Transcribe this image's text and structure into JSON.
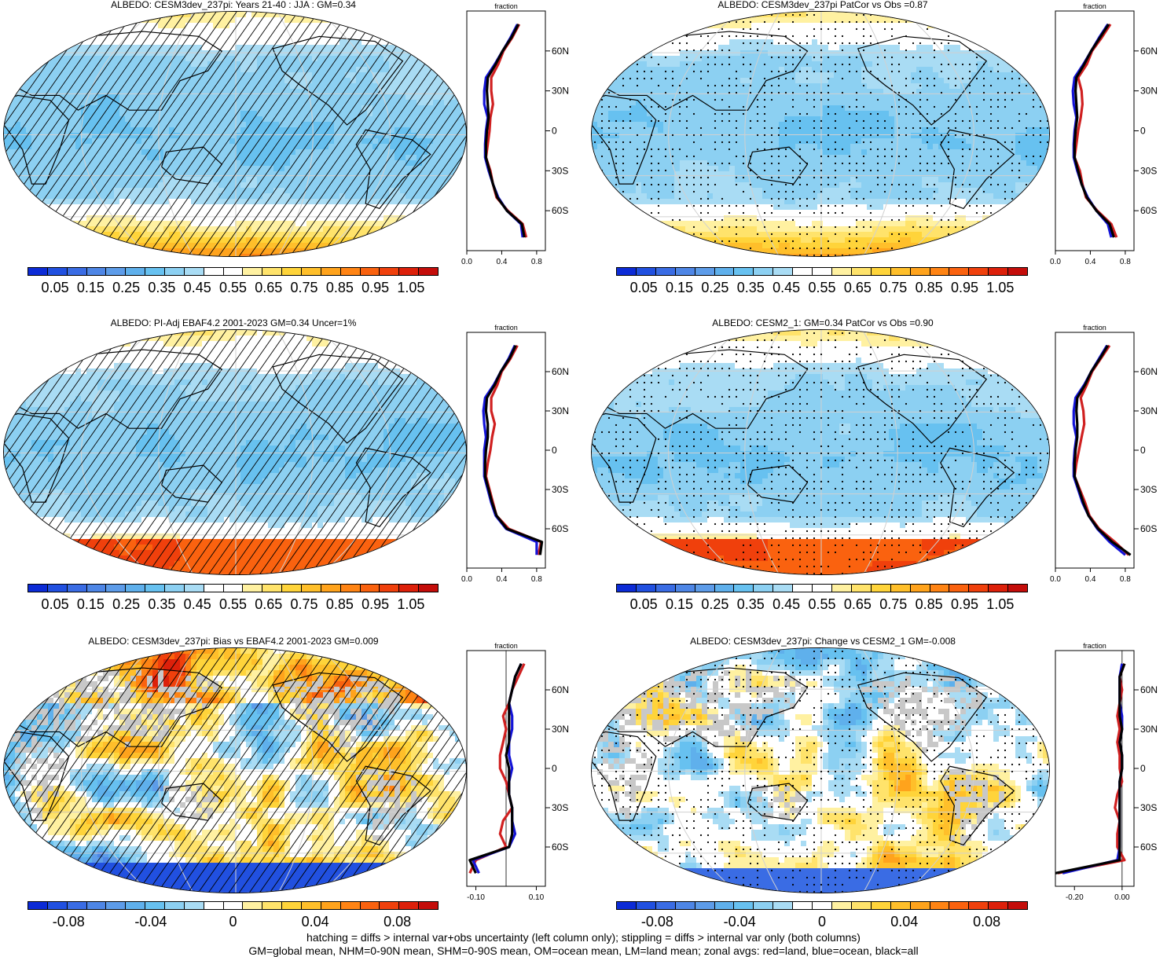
{
  "panels": [
    {
      "title": "ALBEDO: CESM3dev_237pi: Years 21-40 : JJA : GM=0.34",
      "kind": "abs",
      "pattern": "hatch",
      "field": "abs1",
      "colorbar_labels": [
        "0.05",
        "0.15",
        "0.25",
        "0.35",
        "0.45",
        "0.55",
        "0.65",
        "0.75",
        "0.85",
        "0.95",
        "1.05"
      ],
      "zonal_top_label": "fraction",
      "zonal_y_ticks": [
        "60N",
        "30N",
        "0",
        "30S",
        "60S"
      ],
      "zonal_x_ticks": [
        "0.0",
        "0.4",
        "0.8"
      ]
    },
    {
      "title": "ALBEDO: CESM3dev_237pi PatCor vs Obs =0.87",
      "kind": "abs",
      "pattern": "stipple",
      "field": "abs1",
      "colorbar_labels": [
        "0.05",
        "0.15",
        "0.25",
        "0.35",
        "0.45",
        "0.55",
        "0.65",
        "0.75",
        "0.85",
        "0.95",
        "1.05"
      ],
      "zonal_top_label": "fraction",
      "zonal_y_ticks": [
        "60N",
        "30N",
        "0",
        "30S",
        "60S"
      ],
      "zonal_x_ticks": [
        "0.0",
        "0.4",
        "0.8"
      ]
    },
    {
      "title": "ALBEDO: PI-Adj EBAF4.2 2001-2023 GM=0.34 Uncer=1%",
      "kind": "abs",
      "pattern": "hatch",
      "field": "abs2",
      "colorbar_labels": [
        "0.05",
        "0.15",
        "0.25",
        "0.35",
        "0.45",
        "0.55",
        "0.65",
        "0.75",
        "0.85",
        "0.95",
        "1.05"
      ],
      "zonal_top_label": "fraction",
      "zonal_y_ticks": [
        "60N",
        "30N",
        "0",
        "30S",
        "60S"
      ],
      "zonal_x_ticks": [
        "0.0",
        "0.4",
        "0.8"
      ]
    },
    {
      "title": "ALBEDO: CESM2_1: GM=0.34 PatCor vs Obs =0.90",
      "kind": "abs",
      "pattern": "stipple",
      "field": "abs2",
      "colorbar_labels": [
        "0.05",
        "0.15",
        "0.25",
        "0.35",
        "0.45",
        "0.55",
        "0.65",
        "0.75",
        "0.85",
        "0.95",
        "1.05"
      ],
      "zonal_top_label": "fraction",
      "zonal_y_ticks": [
        "60N",
        "30N",
        "0",
        "30S",
        "60S"
      ],
      "zonal_x_ticks": [
        "0.0",
        "0.4",
        "0.8"
      ]
    },
    {
      "title": "ALBEDO: CESM3dev_237pi: Bias vs EBAF4.2 2001-2023 GM=0.009",
      "kind": "diff",
      "pattern": "hatch",
      "field": "bias",
      "colorbar_labels": [
        "-0.08",
        "-0.04",
        "0",
        "0.04",
        "0.08"
      ],
      "zonal_top_label": "fraction",
      "zonal_y_ticks": [
        "60N",
        "30N",
        "0",
        "30S",
        "60S"
      ],
      "zonal_x_ticks": [
        "-0.10",
        "0.10"
      ]
    },
    {
      "title": "ALBEDO: CESM3dev_237pi: Change vs CESM2_1 GM=-0.008",
      "kind": "diff",
      "pattern": "stipple",
      "field": "change",
      "colorbar_labels": [
        "-0.08",
        "-0.04",
        "0",
        "0.04",
        "0.08"
      ],
      "zonal_top_label": "fraction",
      "zonal_y_ticks": [
        "60N",
        "30N",
        "0",
        "30S",
        "60S"
      ],
      "zonal_x_ticks": [
        "-0.20",
        "0.00"
      ]
    }
  ],
  "colors": {
    "abs_scale": [
      "#0c2bd6",
      "#2150e0",
      "#3a6ce4",
      "#4e86e6",
      "#5d9ce9",
      "#5fb0ec",
      "#67c1f0",
      "#8cd0f2",
      "#a9dcf4",
      "#ffffff",
      "#ffffff",
      "#fff1a1",
      "#ffe36b",
      "#ffd43a",
      "#ffbf2a",
      "#ffa31c",
      "#ff8414",
      "#fa620f",
      "#f0400c",
      "#dd200a",
      "#c40d0a"
    ],
    "diff_scale": [
      "#0c2bd6",
      "#2150e0",
      "#3a6ce4",
      "#4e86e6",
      "#5d9ce9",
      "#5fb0ec",
      "#67c1f0",
      "#8cd0f2",
      "#a9dcf4",
      "#ffffff",
      "#ffffff",
      "#fff1a1",
      "#ffe36b",
      "#ffd43a",
      "#ffbf2a",
      "#ffa31c",
      "#ff8414",
      "#fa620f",
      "#f0400c",
      "#dd200a",
      "#c40d0a"
    ],
    "land": "#d02020",
    "ocean": "#1414d8",
    "all": "#000000",
    "missing_land": "#c8c8c8"
  },
  "chart_data": [
    {
      "type": "heatmap",
      "title": "ALBEDO: CESM3dev_237pi: Years 21-40 : JJA : GM=0.34",
      "colorbar_levels": [
        0.05,
        0.15,
        0.25,
        0.35,
        0.45,
        0.55,
        0.65,
        0.75,
        0.85,
        0.95,
        1.05
      ],
      "zonal_means": {
        "xlabel": "fraction",
        "xlim": [
          0,
          0.9
        ],
        "ylim": [
          -90,
          90
        ],
        "lat": [
          80,
          70,
          60,
          50,
          40,
          30,
          20,
          10,
          0,
          -10,
          -20,
          -30,
          -40,
          -50,
          -60,
          -70,
          -80
        ],
        "series": [
          {
            "name": "land",
            "values": [
              0.6,
              0.52,
              0.42,
              0.36,
              0.28,
              0.28,
              0.3,
              0.27,
              0.26,
              0.24,
              0.22,
              0.27,
              0.3,
              0.34,
              0.47,
              0.64,
              0.68
            ]
          },
          {
            "name": "ocean",
            "values": [
              0.58,
              0.5,
              0.41,
              0.32,
              0.22,
              0.2,
              0.2,
              0.24,
              0.22,
              0.21,
              0.21,
              0.25,
              0.3,
              0.36,
              0.46,
              0.62,
              0.64
            ]
          },
          {
            "name": "all",
            "values": [
              0.59,
              0.51,
              0.41,
              0.33,
              0.24,
              0.23,
              0.24,
              0.25,
              0.23,
              0.22,
              0.22,
              0.26,
              0.3,
              0.35,
              0.46,
              0.63,
              0.66
            ]
          }
        ]
      }
    },
    {
      "type": "heatmap",
      "title": "ALBEDO: CESM3dev_237pi PatCor vs Obs =0.87",
      "colorbar_levels": [
        0.05,
        0.15,
        0.25,
        0.35,
        0.45,
        0.55,
        0.65,
        0.75,
        0.85,
        0.95,
        1.05
      ],
      "zonal_means": {
        "xlabel": "fraction",
        "xlim": [
          0,
          0.9
        ],
        "ylim": [
          -90,
          90
        ],
        "lat": [
          80,
          70,
          60,
          50,
          40,
          30,
          20,
          10,
          0,
          -10,
          -20,
          -30,
          -40,
          -50,
          -60,
          -70,
          -80
        ],
        "series": [
          {
            "name": "land",
            "values": [
              0.63,
              0.53,
              0.42,
              0.36,
              0.26,
              0.3,
              0.31,
              0.29,
              0.26,
              0.24,
              0.22,
              0.28,
              0.31,
              0.35,
              0.48,
              0.64,
              0.7
            ]
          },
          {
            "name": "ocean",
            "values": [
              0.6,
              0.5,
              0.41,
              0.32,
              0.22,
              0.2,
              0.21,
              0.24,
              0.22,
              0.21,
              0.21,
              0.25,
              0.3,
              0.37,
              0.47,
              0.6,
              0.64
            ]
          },
          {
            "name": "all",
            "values": [
              0.61,
              0.51,
              0.41,
              0.33,
              0.24,
              0.23,
              0.24,
              0.25,
              0.23,
              0.22,
              0.22,
              0.26,
              0.3,
              0.36,
              0.47,
              0.62,
              0.67
            ]
          }
        ]
      }
    },
    {
      "type": "heatmap",
      "title": "ALBEDO: PI-Adj EBAF4.2 2001-2023 GM=0.34 Uncer=1%",
      "colorbar_levels": [
        0.05,
        0.15,
        0.25,
        0.35,
        0.45,
        0.55,
        0.65,
        0.75,
        0.85,
        0.95,
        1.05
      ],
      "zonal_means": {
        "xlabel": "fraction",
        "xlim": [
          0,
          0.9
        ],
        "ylim": [
          -90,
          90
        ],
        "lat": [
          80,
          70,
          60,
          50,
          40,
          30,
          20,
          10,
          0,
          -10,
          -20,
          -30,
          -40,
          -50,
          -60,
          -70,
          -80
        ],
        "series": [
          {
            "name": "land",
            "values": [
              0.58,
              0.5,
              0.4,
              0.35,
              0.28,
              0.28,
              0.32,
              0.29,
              0.27,
              0.24,
              0.22,
              0.26,
              0.3,
              0.34,
              0.48,
              0.85,
              0.82
            ]
          },
          {
            "name": "ocean",
            "values": [
              0.55,
              0.48,
              0.39,
              0.31,
              0.21,
              0.19,
              0.2,
              0.22,
              0.2,
              0.2,
              0.2,
              0.24,
              0.28,
              0.33,
              0.45,
              0.8,
              0.8
            ]
          },
          {
            "name": "all",
            "values": [
              0.56,
              0.49,
              0.39,
              0.32,
              0.23,
              0.22,
              0.24,
              0.24,
              0.22,
              0.21,
              0.21,
              0.25,
              0.29,
              0.34,
              0.46,
              0.86,
              0.84
            ]
          }
        ]
      }
    },
    {
      "type": "heatmap",
      "title": "ALBEDO: CESM2_1: GM=0.34 PatCor vs Obs =0.90",
      "colorbar_levels": [
        0.05,
        0.15,
        0.25,
        0.35,
        0.45,
        0.55,
        0.65,
        0.75,
        0.85,
        0.95,
        1.05
      ],
      "zonal_means": {
        "xlabel": "fraction",
        "xlim": [
          0,
          0.9
        ],
        "ylim": [
          -90,
          90
        ],
        "lat": [
          80,
          70,
          60,
          50,
          40,
          30,
          20,
          10,
          0,
          -10,
          -20,
          -30,
          -40,
          -50,
          -60,
          -70,
          -80
        ],
        "series": [
          {
            "name": "land",
            "values": [
              0.62,
              0.52,
              0.42,
              0.36,
              0.29,
              0.32,
              0.33,
              0.3,
              0.27,
              0.24,
              0.22,
              0.28,
              0.34,
              0.39,
              0.5,
              0.68,
              0.84
            ]
          },
          {
            "name": "ocean",
            "values": [
              0.59,
              0.5,
              0.41,
              0.33,
              0.23,
              0.21,
              0.21,
              0.24,
              0.22,
              0.21,
              0.21,
              0.26,
              0.31,
              0.38,
              0.48,
              0.62,
              0.8
            ]
          },
          {
            "name": "all",
            "values": [
              0.6,
              0.51,
              0.41,
              0.34,
              0.25,
              0.24,
              0.25,
              0.25,
              0.23,
              0.22,
              0.22,
              0.27,
              0.32,
              0.38,
              0.49,
              0.65,
              0.86
            ]
          }
        ]
      }
    },
    {
      "type": "heatmap",
      "title": "ALBEDO: CESM3dev_237pi: Bias vs EBAF4.2 2001-2023 GM=0.009",
      "colorbar_levels": [
        -0.08,
        -0.04,
        0,
        0.04,
        0.08
      ],
      "zonal_means": {
        "xlabel": "fraction",
        "xlim": [
          -0.13,
          0.13
        ],
        "ylim": [
          -90,
          90
        ],
        "lat": [
          80,
          70,
          60,
          50,
          40,
          30,
          20,
          10,
          0,
          -10,
          -20,
          -30,
          -40,
          -50,
          -60,
          -70,
          -80
        ],
        "series": [
          {
            "name": "land",
            "values": [
              0.06,
              0.04,
              0.02,
              0.01,
              -0.01,
              0.0,
              -0.01,
              -0.02,
              -0.02,
              0.0,
              0.01,
              0.02,
              -0.01,
              -0.02,
              0.0,
              -0.1,
              -0.12
            ]
          },
          {
            "name": "ocean",
            "values": [
              0.05,
              0.03,
              0.02,
              0.01,
              0.02,
              0.02,
              0.01,
              0.01,
              0.02,
              0.01,
              0.01,
              0.02,
              0.02,
              0.03,
              0.01,
              -0.11,
              -0.09
            ]
          },
          {
            "name": "all",
            "values": [
              0.05,
              0.03,
              0.02,
              0.01,
              0.01,
              0.01,
              0.01,
              0.0,
              0.01,
              0.01,
              0.01,
              0.02,
              0.02,
              0.02,
              0.01,
              -0.12,
              -0.1
            ]
          }
        ]
      }
    },
    {
      "type": "heatmap",
      "title": "ALBEDO: CESM3dev_237pi: Change vs CESM2_1 GM=-0.008",
      "colorbar_levels": [
        -0.08,
        -0.04,
        0,
        0.04,
        0.08
      ],
      "zonal_means": {
        "xlabel": "fraction",
        "xlim": [
          -0.28,
          0.05
        ],
        "ylim": [
          -90,
          90
        ],
        "lat": [
          80,
          70,
          60,
          50,
          40,
          30,
          20,
          10,
          0,
          -10,
          -20,
          -30,
          -40,
          -50,
          -60,
          -70,
          -80
        ],
        "series": [
          {
            "name": "land",
            "values": [
              0.01,
              -0.01,
              0.0,
              -0.01,
              -0.02,
              -0.01,
              -0.02,
              -0.01,
              -0.01,
              0.0,
              -0.02,
              -0.03,
              -0.01,
              -0.02,
              -0.02,
              0.01,
              -0.27
            ]
          },
          {
            "name": "ocean",
            "values": [
              0.0,
              -0.01,
              -0.01,
              -0.01,
              0.0,
              0.0,
              -0.01,
              0.0,
              0.0,
              -0.01,
              -0.01,
              -0.01,
              -0.01,
              -0.01,
              -0.01,
              -0.02,
              -0.25
            ]
          },
          {
            "name": "all",
            "values": [
              0.01,
              -0.01,
              -0.01,
              -0.01,
              -0.01,
              0.0,
              -0.01,
              0.0,
              0.0,
              -0.01,
              -0.01,
              -0.01,
              -0.01,
              -0.01,
              -0.01,
              -0.01,
              -0.28
            ]
          }
        ]
      }
    }
  ],
  "footer": {
    "line1": "hatching = diffs > internal var+obs uncertainty (left column only); stippling = diffs > internal var only (both columns)",
    "line2": "GM=global mean, NHM=0-90N mean, SHM=0-90S mean, OM=ocean mean, LM=land mean; zonal avgs: red=land, blue=ocean, black=all"
  }
}
